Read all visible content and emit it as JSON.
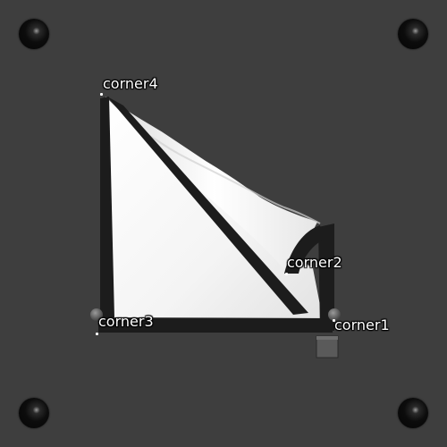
{
  "scene": {
    "background_color": "#3e3e3e",
    "cloth_color": "#ffffff",
    "frame_color": "#1c1c1c"
  },
  "corners": [
    {
      "id": "corner1",
      "label": "corner1"
    },
    {
      "id": "corner2",
      "label": "corner2"
    },
    {
      "id": "corner3",
      "label": "corner3"
    },
    {
      "id": "corner4",
      "label": "corner4"
    }
  ],
  "icons": {
    "screw": "screw-icon",
    "cube": "cube-icon",
    "pivot": "pivot-icon"
  }
}
